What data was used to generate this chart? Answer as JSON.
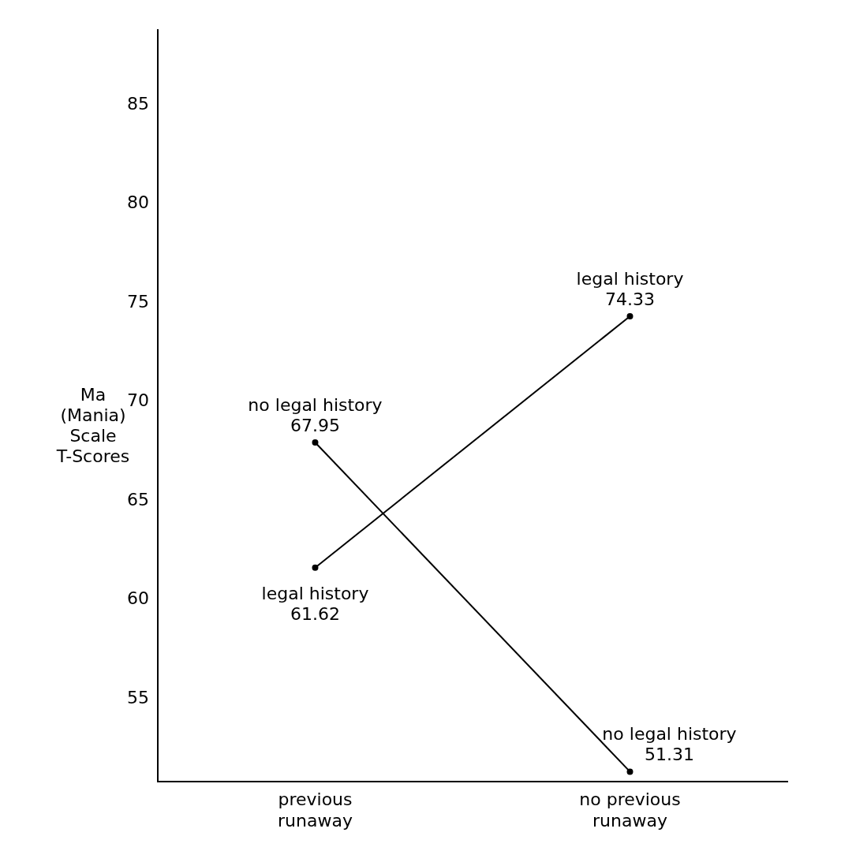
{
  "chart_data": {
    "type": "line",
    "ylabel": "Ma (Mania) Scale T-Scores",
    "categories": [
      "previous runaway",
      "no previous runaway"
    ],
    "series": [
      {
        "name": "legal history",
        "color": "#000000",
        "values": [
          61.62,
          74.33
        ]
      },
      {
        "name": "no legal history",
        "color": "#000000",
        "values": [
          67.95,
          51.31
        ]
      }
    ],
    "ylim": [
      50.8,
      88.8
    ],
    "yticks": [
      55,
      60,
      65,
      70,
      75,
      80,
      85
    ],
    "data_labels": true,
    "marker": "circle",
    "line_style": "solid",
    "grid": false,
    "legend": false
  }
}
